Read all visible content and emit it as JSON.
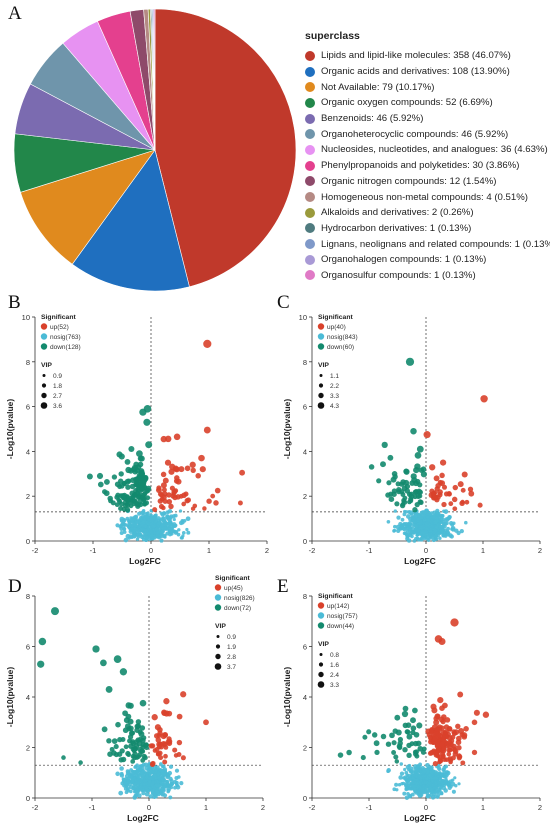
{
  "panels": {
    "A": "A",
    "B": "B",
    "C": "C",
    "D": "D",
    "E": "E"
  },
  "chart_data": [
    {
      "type": "pie",
      "legend_title": "superclass",
      "slices": [
        {
          "label": "Lipids and lipid-like molecules: 358 (46.07%)",
          "value": 46.07,
          "color": "#c0392b"
        },
        {
          "label": "Organic acids and derivatives: 108 (13.90%)",
          "value": 13.9,
          "color": "#1f6fbf"
        },
        {
          "label": "Not Available: 79 (10.17%)",
          "value": 10.17,
          "color": "#e08a1e"
        },
        {
          "label": "Organic oxygen compounds: 52 (6.69%)",
          "value": 6.69,
          "color": "#22874a"
        },
        {
          "label": "Benzenoids: 46 (5.92%)",
          "value": 5.92,
          "color": "#7b6bb0"
        },
        {
          "label": "Organoheterocyclic compounds: 46 (5.92%)",
          "value": 5.92,
          "color": "#6f95ab"
        },
        {
          "label": "Nucleosides, nucleotides, and analogues: 36 (4.63%)",
          "value": 4.63,
          "color": "#e792f2"
        },
        {
          "label": "Phenylpropanoids and polyketides: 30 (3.86%)",
          "value": 3.86,
          "color": "#e4408e"
        },
        {
          "label": "Organic nitrogen compounds: 12 (1.54%)",
          "value": 1.54,
          "color": "#8e4a6a"
        },
        {
          "label": "Homogeneous non-metal compounds: 4 (0.51%)",
          "value": 0.51,
          "color": "#b58a84"
        },
        {
          "label": "Alkaloids and derivatives: 2 (0.26%)",
          "value": 0.26,
          "color": "#9a9a3c"
        },
        {
          "label": "Hydrocarbon derivatives: 1 (0.13%)",
          "value": 0.13,
          "color": "#4f7b7f"
        },
        {
          "label": "Lignans, neolignans and related compounds: 1 (0.13%)",
          "value": 0.13,
          "color": "#7f99c9"
        },
        {
          "label": "Organohalogen compounds: 1 (0.13%)",
          "value": 0.13,
          "color": "#a99ad6"
        },
        {
          "label": "Organosulfur compounds: 1 (0.13%)",
          "value": 0.13,
          "color": "#e07ac6"
        }
      ]
    },
    {
      "type": "scatter",
      "panel": "B",
      "xlabel": "Log2FC",
      "ylabel": "-Log10(pvalue)",
      "xlim": [
        -2,
        2
      ],
      "ylim": [
        0,
        10
      ],
      "xticks": [
        -2,
        -1,
        0,
        1,
        2
      ],
      "yticks": [
        0,
        2,
        4,
        6,
        8,
        10
      ],
      "threshold_y": 1.3,
      "legend_title": "Significant",
      "groups": [
        {
          "name": "up(52)",
          "color": "#d9412b"
        },
        {
          "name": "nosig(763)",
          "color": "#4bbbd6"
        },
        {
          "name": "down(128)",
          "color": "#138a6e"
        }
      ],
      "vip_title": "VIP",
      "vip_labels": [
        "0.9",
        "1.8",
        "2.7",
        "3.6"
      ],
      "highlight_points": [
        {
          "x": 0.97,
          "y": 8.8,
          "g": 0
        },
        {
          "x": 0.97,
          "y": 4.95,
          "g": 0
        },
        {
          "x": 1.57,
          "y": 3.05,
          "g": 0
        },
        {
          "x": 0.87,
          "y": 3.7,
          "g": 0
        },
        {
          "x": 0.45,
          "y": 4.65,
          "g": 0
        },
        {
          "x": 0.22,
          "y": 4.55,
          "g": 0
        },
        {
          "x": 1.15,
          "y": 2.25,
          "g": 0
        },
        {
          "x": 1.12,
          "y": 1.7,
          "g": 0
        },
        {
          "x": 0.92,
          "y": 1.45,
          "g": 0
        },
        {
          "x": -0.06,
          "y": 5.9,
          "g": 2
        },
        {
          "x": -0.14,
          "y": 5.75,
          "g": 2
        },
        {
          "x": -0.07,
          "y": 5.3,
          "g": 2
        },
        {
          "x": -0.04,
          "y": 4.3,
          "g": 2
        },
        {
          "x": -0.2,
          "y": 3.9,
          "g": 2
        },
        {
          "x": -0.88,
          "y": 2.9,
          "g": 2
        },
        {
          "x": -0.65,
          "y": 1.7,
          "g": 2
        },
        {
          "x": -0.8,
          "y": 2.2,
          "g": 2
        }
      ],
      "seed": 11,
      "counts": {
        "up": 52,
        "nosig": 400,
        "down": 128
      },
      "spread": {
        "up": 0.75,
        "down": 0.5
      }
    },
    {
      "type": "scatter",
      "panel": "C",
      "xlabel": "Log2FC",
      "ylabel": "-Log10(pvalue)",
      "xlim": [
        -2,
        2
      ],
      "ylim": [
        0,
        10
      ],
      "xticks": [
        -2,
        -1,
        0,
        1,
        2
      ],
      "yticks": [
        0,
        2,
        4,
        6,
        8,
        10
      ],
      "threshold_y": 1.3,
      "legend_title": "Significant",
      "groups": [
        {
          "name": "up(40)",
          "color": "#d9412b"
        },
        {
          "name": "nosig(843)",
          "color": "#4bbbd6"
        },
        {
          "name": "down(60)",
          "color": "#138a6e"
        }
      ],
      "vip_title": "VIP",
      "vip_labels": [
        "1.1",
        "2.2",
        "3.3",
        "4.3"
      ],
      "highlight_points": [
        {
          "x": 1.02,
          "y": 6.35,
          "g": 0
        },
        {
          "x": 0.02,
          "y": 4.75,
          "g": 0
        },
        {
          "x": 0.3,
          "y": 3.5,
          "g": 0
        },
        {
          "x": 0.95,
          "y": 1.6,
          "g": 0
        },
        {
          "x": -0.28,
          "y": 8.0,
          "g": 2
        },
        {
          "x": -0.22,
          "y": 4.9,
          "g": 2
        },
        {
          "x": -0.1,
          "y": 4.1,
          "g": 2
        },
        {
          "x": -0.55,
          "y": 3.0,
          "g": 2
        },
        {
          "x": -0.65,
          "y": 2.6,
          "g": 2
        }
      ],
      "seed": 23,
      "counts": {
        "up": 40,
        "nosig": 420,
        "down": 60
      },
      "spread": {
        "up": 0.55,
        "down": 0.5
      }
    },
    {
      "type": "scatter",
      "panel": "D",
      "xlabel": "Log2FC",
      "ylabel": "-Log10(pvalue)",
      "xlim": [
        -2,
        2
      ],
      "ylim": [
        0,
        8
      ],
      "xticks": [
        -2,
        -1,
        0,
        1,
        2
      ],
      "yticks": [
        0,
        2,
        4,
        6,
        8
      ],
      "threshold_y": 1.3,
      "legend_title": "Significant",
      "groups": [
        {
          "name": "up(45)",
          "color": "#d9412b"
        },
        {
          "name": "nosig(826)",
          "color": "#4bbbd6"
        },
        {
          "name": "down(72)",
          "color": "#138a6e"
        }
      ],
      "vip_title": "VIP",
      "vip_labels": [
        "0.9",
        "1.9",
        "2.8",
        "3.7"
      ],
      "highlight_points": [
        {
          "x": -1.65,
          "y": 7.4,
          "g": 2
        },
        {
          "x": -1.87,
          "y": 6.2,
          "g": 2
        },
        {
          "x": -1.9,
          "y": 5.3,
          "g": 2
        },
        {
          "x": -0.93,
          "y": 5.9,
          "g": 2
        },
        {
          "x": -0.8,
          "y": 5.35,
          "g": 2
        },
        {
          "x": -0.55,
          "y": 5.5,
          "g": 2
        },
        {
          "x": -0.45,
          "y": 5.0,
          "g": 2
        },
        {
          "x": -0.7,
          "y": 4.3,
          "g": 2
        },
        {
          "x": -1.5,
          "y": 1.6,
          "g": 2
        },
        {
          "x": -1.2,
          "y": 1.4,
          "g": 2
        },
        {
          "x": 1.0,
          "y": 3.0,
          "g": 0
        },
        {
          "x": 0.1,
          "y": 3.2,
          "g": 0
        }
      ],
      "seed": 37,
      "counts": {
        "up": 45,
        "nosig": 420,
        "down": 72
      },
      "spread": {
        "up": 0.35,
        "down": 0.55
      }
    },
    {
      "type": "scatter",
      "panel": "E",
      "xlabel": "Log2FC",
      "ylabel": "-Log10(pvalue)",
      "xlim": [
        -2,
        2
      ],
      "ylim": [
        0,
        8
      ],
      "xticks": [
        -2,
        -1,
        0,
        1,
        2
      ],
      "yticks": [
        0,
        2,
        4,
        6,
        8
      ],
      "threshold_y": 1.3,
      "legend_title": "Significant",
      "groups": [
        {
          "name": "up(142)",
          "color": "#d9412b"
        },
        {
          "name": "nosig(757)",
          "color": "#4bbbd6"
        },
        {
          "name": "down(44)",
          "color": "#138a6e"
        }
      ],
      "vip_title": "VIP",
      "vip_labels": [
        "0.8",
        "1.6",
        "2.4",
        "3.3"
      ],
      "highlight_points": [
        {
          "x": 0.5,
          "y": 6.95,
          "g": 0
        },
        {
          "x": 0.22,
          "y": 6.3,
          "g": 0
        },
        {
          "x": 0.28,
          "y": 6.2,
          "g": 0
        },
        {
          "x": 1.05,
          "y": 3.3,
          "g": 0
        },
        {
          "x": 0.85,
          "y": 3.0,
          "g": 0
        },
        {
          "x": 0.6,
          "y": 4.1,
          "g": 0
        },
        {
          "x": -1.35,
          "y": 1.8,
          "g": 2
        },
        {
          "x": -1.5,
          "y": 1.7,
          "g": 2
        },
        {
          "x": -0.9,
          "y": 2.5,
          "g": 2
        },
        {
          "x": -1.1,
          "y": 1.6,
          "g": 2
        }
      ],
      "seed": 51,
      "counts": {
        "up": 142,
        "nosig": 420,
        "down": 44
      },
      "spread": {
        "up": 0.45,
        "down": 0.6
      }
    }
  ]
}
